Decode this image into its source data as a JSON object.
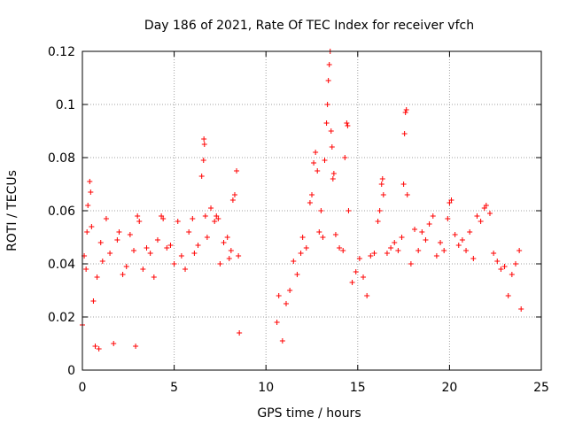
{
  "chart_data": {
    "type": "scatter",
    "title": "Day 186 of 2021, Rate Of TEC Index for receiver vfch",
    "xlabel": "GPS time / hours",
    "ylabel": "ROTI / TECUs",
    "xlim": [
      0,
      25
    ],
    "ylim": [
      0,
      0.12
    ],
    "xticks": [
      0,
      5,
      10,
      15,
      20,
      25
    ],
    "xtick_labels": [
      "0",
      "5",
      "10",
      "15",
      "20",
      "25"
    ],
    "yticks": [
      0,
      0.02,
      0.04,
      0.06,
      0.08,
      0.1,
      0.12
    ],
    "ytick_labels": [
      "0",
      "0.02",
      "0.04",
      "0.06",
      "0.08",
      "0.1",
      "0.12"
    ],
    "grid": true,
    "marker": "+",
    "color": "#ff0000",
    "series": [
      {
        "name": "ROTI",
        "points": [
          [
            0.0,
            0.017
          ],
          [
            0.1,
            0.043
          ],
          [
            0.2,
            0.038
          ],
          [
            0.25,
            0.052
          ],
          [
            0.3,
            0.062
          ],
          [
            0.4,
            0.071
          ],
          [
            0.45,
            0.067
          ],
          [
            0.5,
            0.054
          ],
          [
            0.6,
            0.026
          ],
          [
            0.7,
            0.009
          ],
          [
            0.8,
            0.035
          ],
          [
            0.9,
            0.008
          ],
          [
            1.0,
            0.048
          ],
          [
            1.1,
            0.041
          ],
          [
            1.3,
            0.057
          ],
          [
            1.5,
            0.044
          ],
          [
            1.7,
            0.01
          ],
          [
            1.9,
            0.049
          ],
          [
            2.0,
            0.052
          ],
          [
            2.2,
            0.036
          ],
          [
            2.4,
            0.039
          ],
          [
            2.6,
            0.051
          ],
          [
            2.8,
            0.045
          ],
          [
            2.9,
            0.009
          ],
          [
            3.0,
            0.058
          ],
          [
            3.1,
            0.056
          ],
          [
            3.3,
            0.038
          ],
          [
            3.5,
            0.046
          ],
          [
            3.7,
            0.044
          ],
          [
            3.9,
            0.035
          ],
          [
            4.1,
            0.049
          ],
          [
            4.3,
            0.058
          ],
          [
            4.4,
            0.057
          ],
          [
            4.6,
            0.046
          ],
          [
            4.8,
            0.047
          ],
          [
            5.0,
            0.04
          ],
          [
            5.2,
            0.056
          ],
          [
            5.4,
            0.043
          ],
          [
            5.6,
            0.038
          ],
          [
            5.8,
            0.052
          ],
          [
            6.0,
            0.057
          ],
          [
            6.1,
            0.044
          ],
          [
            6.3,
            0.047
          ],
          [
            6.5,
            0.073
          ],
          [
            6.6,
            0.079
          ],
          [
            6.62,
            0.087
          ],
          [
            6.65,
            0.085
          ],
          [
            6.7,
            0.058
          ],
          [
            6.8,
            0.05
          ],
          [
            7.0,
            0.061
          ],
          [
            7.2,
            0.056
          ],
          [
            7.3,
            0.058
          ],
          [
            7.4,
            0.057
          ],
          [
            7.5,
            0.04
          ],
          [
            7.7,
            0.048
          ],
          [
            7.9,
            0.05
          ],
          [
            8.0,
            0.042
          ],
          [
            8.1,
            0.045
          ],
          [
            8.2,
            0.064
          ],
          [
            8.3,
            0.066
          ],
          [
            8.4,
            0.075
          ],
          [
            8.5,
            0.043
          ],
          [
            8.55,
            0.014
          ],
          [
            10.6,
            0.018
          ],
          [
            10.7,
            0.028
          ],
          [
            10.9,
            0.011
          ],
          [
            11.1,
            0.025
          ],
          [
            11.3,
            0.03
          ],
          [
            11.5,
            0.041
          ],
          [
            11.7,
            0.036
          ],
          [
            11.9,
            0.044
          ],
          [
            12.0,
            0.05
          ],
          [
            12.2,
            0.046
          ],
          [
            12.4,
            0.063
          ],
          [
            12.5,
            0.066
          ],
          [
            12.6,
            0.078
          ],
          [
            12.7,
            0.082
          ],
          [
            12.8,
            0.075
          ],
          [
            12.9,
            0.052
          ],
          [
            13.0,
            0.06
          ],
          [
            13.1,
            0.05
          ],
          [
            13.2,
            0.079
          ],
          [
            13.3,
            0.093
          ],
          [
            13.35,
            0.1
          ],
          [
            13.4,
            0.109
          ],
          [
            13.45,
            0.115
          ],
          [
            13.5,
            0.12
          ],
          [
            13.55,
            0.09
          ],
          [
            13.6,
            0.084
          ],
          [
            13.65,
            0.072
          ],
          [
            13.7,
            0.074
          ],
          [
            13.8,
            0.051
          ],
          [
            14.0,
            0.046
          ],
          [
            14.2,
            0.045
          ],
          [
            14.3,
            0.08
          ],
          [
            14.4,
            0.093
          ],
          [
            14.45,
            0.092
          ],
          [
            14.5,
            0.06
          ],
          [
            14.7,
            0.033
          ],
          [
            14.9,
            0.037
          ],
          [
            15.1,
            0.042
          ],
          [
            15.3,
            0.035
          ],
          [
            15.5,
            0.028
          ],
          [
            15.7,
            0.043
          ],
          [
            15.9,
            0.044
          ],
          [
            16.1,
            0.056
          ],
          [
            16.2,
            0.06
          ],
          [
            16.3,
            0.07
          ],
          [
            16.35,
            0.072
          ],
          [
            16.4,
            0.066
          ],
          [
            16.6,
            0.044
          ],
          [
            16.8,
            0.046
          ],
          [
            17.0,
            0.048
          ],
          [
            17.2,
            0.045
          ],
          [
            17.4,
            0.05
          ],
          [
            17.5,
            0.07
          ],
          [
            17.55,
            0.089
          ],
          [
            17.6,
            0.097
          ],
          [
            17.65,
            0.098
          ],
          [
            17.7,
            0.066
          ],
          [
            17.9,
            0.04
          ],
          [
            18.1,
            0.053
          ],
          [
            18.3,
            0.045
          ],
          [
            18.5,
            0.052
          ],
          [
            18.7,
            0.049
          ],
          [
            18.9,
            0.055
          ],
          [
            19.1,
            0.058
          ],
          [
            19.3,
            0.043
          ],
          [
            19.5,
            0.048
          ],
          [
            19.7,
            0.045
          ],
          [
            19.9,
            0.057
          ],
          [
            20.0,
            0.063
          ],
          [
            20.1,
            0.064
          ],
          [
            20.3,
            0.051
          ],
          [
            20.5,
            0.047
          ],
          [
            20.7,
            0.049
          ],
          [
            20.9,
            0.045
          ],
          [
            21.1,
            0.052
          ],
          [
            21.3,
            0.042
          ],
          [
            21.5,
            0.058
          ],
          [
            21.7,
            0.056
          ],
          [
            21.9,
            0.061
          ],
          [
            22.0,
            0.062
          ],
          [
            22.2,
            0.059
          ],
          [
            22.4,
            0.044
          ],
          [
            22.6,
            0.041
          ],
          [
            22.8,
            0.038
          ],
          [
            23.0,
            0.039
          ],
          [
            23.2,
            0.028
          ],
          [
            23.4,
            0.036
          ],
          [
            23.6,
            0.04
          ],
          [
            23.8,
            0.045
          ],
          [
            23.9,
            0.023
          ]
        ]
      }
    ]
  }
}
